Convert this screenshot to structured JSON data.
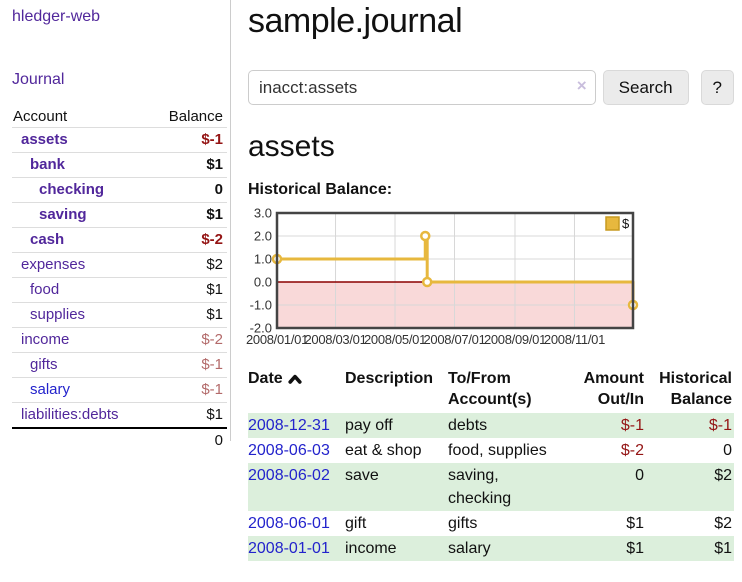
{
  "sidebar": {
    "brand": "hledger-web",
    "nav": {
      "journal": "Journal"
    },
    "table": {
      "account_header": "Account",
      "balance_header": "Balance",
      "rows": [
        {
          "name": "assets",
          "balance": "$-1",
          "level": 1,
          "bold": true,
          "name_color": "purple",
          "balance_color": "negative"
        },
        {
          "name": "bank",
          "balance": "$1",
          "level": 2,
          "bold": true,
          "name_color": "purple",
          "balance_color": "black"
        },
        {
          "name": "checking",
          "balance": "0",
          "level": 3,
          "bold": true,
          "name_color": "purple",
          "balance_color": "black"
        },
        {
          "name": "saving",
          "balance": "$1",
          "level": 3,
          "bold": true,
          "name_color": "purple",
          "balance_color": "black"
        },
        {
          "name": "cash",
          "balance": "$-2",
          "level": 2,
          "bold": true,
          "name_color": "purple",
          "balance_color": "negative"
        },
        {
          "name": "expenses",
          "balance": "$2",
          "level": 1,
          "bold": false,
          "name_color": "purple",
          "balance_color": "black"
        },
        {
          "name": "food",
          "balance": "$1",
          "level": 2,
          "bold": false,
          "name_color": "purple",
          "balance_color": "black"
        },
        {
          "name": "supplies",
          "balance": "$1",
          "level": 2,
          "bold": false,
          "name_color": "purple",
          "balance_color": "black"
        },
        {
          "name": "income",
          "balance": "$-2",
          "level": 1,
          "bold": false,
          "name_color": "purple",
          "balance_color": "pink"
        },
        {
          "name": "gifts",
          "balance": "$-1",
          "level": 2,
          "bold": false,
          "name_color": "purple",
          "balance_color": "pink"
        },
        {
          "name": "salary",
          "balance": "$-1",
          "level": 2,
          "bold": false,
          "name_color": "blue",
          "balance_color": "pink"
        },
        {
          "name": "liabilities:debts",
          "balance": "$1",
          "level": 1,
          "bold": false,
          "name_color": "purple",
          "balance_color": "black"
        }
      ],
      "total": "0"
    }
  },
  "main": {
    "title": "sample.journal",
    "search": {
      "value": "inacct:assets",
      "clear_icon": "×",
      "button_label": "Search",
      "help_label": "?"
    },
    "account_heading": "assets",
    "chart_label": "Historical Balance:"
  },
  "chart_data": {
    "type": "line",
    "subtype": "step-after",
    "title": "Historical Balance:",
    "legend": [
      {
        "label": "$",
        "color": "#e7b83e"
      }
    ],
    "legend_position": "top-right",
    "grid": true,
    "xlim": [
      "2008-01-01",
      "2008-12-31"
    ],
    "ylim": [
      -2.0,
      3.0
    ],
    "x_ticks": [
      {
        "date": "2008-01-01",
        "label": "2008/01/01"
      },
      {
        "date": "2008-03-01",
        "label": "2008/03/01"
      },
      {
        "date": "2008-05-01",
        "label": "2008/05/01"
      },
      {
        "date": "2008-07-01",
        "label": "2008/07/01"
      },
      {
        "date": "2008-09-01",
        "label": "2008/09/01"
      },
      {
        "date": "2008-11-01",
        "label": "2008/11/01"
      }
    ],
    "y_ticks": [
      {
        "v": 3,
        "label": "3.0"
      },
      {
        "v": 2,
        "label": "2.0"
      },
      {
        "v": 1,
        "label": "1.0"
      },
      {
        "v": 0,
        "label": "0.0"
      },
      {
        "v": -1,
        "label": "-1.0"
      },
      {
        "v": -2,
        "label": "-2.0"
      }
    ],
    "series": [
      {
        "name": "$",
        "color": "#e7b83e",
        "points": [
          {
            "date": "2008-01-01",
            "value": 1
          },
          {
            "date": "2008-06-01",
            "value": 2
          },
          {
            "date": "2008-06-03",
            "value": 0
          },
          {
            "date": "2008-12-31",
            "value": -1
          }
        ]
      }
    ],
    "colors": {
      "negative_region": "#f9d9d9",
      "zero_line": "#8b0000",
      "gridline": "#d8d8d8",
      "plot_border": "#444444",
      "marker_fill": "#ffffff"
    }
  },
  "register": {
    "headers": {
      "date": "Date",
      "description": "Description",
      "tofrom_line1": "To/From",
      "tofrom_line2": "Account(s)",
      "amount_line1": "Amount",
      "amount_line2": "Out/In",
      "hist_line1": "Historical",
      "hist_line2": "Balance"
    },
    "rows": [
      {
        "date": "2008-12-31",
        "description": "pay off",
        "accounts": "debts",
        "amount": "$-1",
        "amount_color": "negative",
        "balance": "$-1",
        "balance_color": "negative",
        "shaded": true
      },
      {
        "date": "2008-06-03",
        "description": "eat & shop",
        "accounts": "food, supplies",
        "amount": "$-2",
        "amount_color": "negative",
        "balance": "0",
        "balance_color": "black",
        "shaded": false
      },
      {
        "date": "2008-06-02",
        "description": "save",
        "accounts": "saving, checking",
        "amount": "0",
        "amount_color": "black",
        "balance": "$2",
        "balance_color": "black",
        "shaded": true
      },
      {
        "date": "2008-06-01",
        "description": "gift",
        "accounts": "gifts",
        "amount": "$1",
        "amount_color": "black",
        "balance": "$2",
        "balance_color": "black",
        "shaded": false
      },
      {
        "date": "2008-01-01",
        "description": "income",
        "accounts": "salary",
        "amount": "$1",
        "amount_color": "black",
        "balance": "$1",
        "balance_color": "black",
        "shaded": true
      }
    ]
  }
}
